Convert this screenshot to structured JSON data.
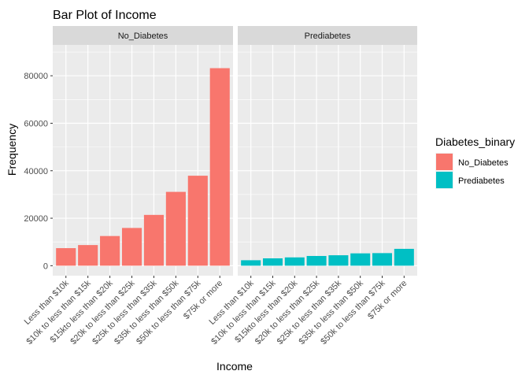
{
  "chart_data": {
    "type": "bar",
    "title": "Bar Plot of Income",
    "xlabel": "Income",
    "ylabel": "Frequency",
    "ylim": [
      -4200,
      93000
    ],
    "yticks": [
      0,
      20000,
      40000,
      60000,
      80000
    ],
    "ytick_labels": [
      "0",
      "20000",
      "40000",
      "60000",
      "80000"
    ],
    "grid": true,
    "legend_position": "right",
    "legend_title": "Diabetes_binary",
    "categories": [
      "Less than $10k",
      "$10k to less than $15k",
      "$15kto less than $20k",
      "$20k to less than $25k",
      "$25k to less than $35k",
      "$35k to less than $50k",
      "$50k to less than $75k",
      "$75k or more"
    ],
    "facets": [
      {
        "label": "No_Diabetes",
        "series": "No_Diabetes",
        "values": [
          7400,
          8700,
          12500,
          15900,
          21400,
          31100,
          37900,
          83200
        ]
      },
      {
        "label": "Prediabetes",
        "series": "Prediabetes",
        "values": [
          2300,
          3100,
          3500,
          4100,
          4400,
          5200,
          5300,
          7100
        ]
      }
    ],
    "series": [
      {
        "name": "No_Diabetes",
        "color": "#F8766D"
      },
      {
        "name": "Prediabetes",
        "color": "#00BFC4"
      }
    ]
  }
}
